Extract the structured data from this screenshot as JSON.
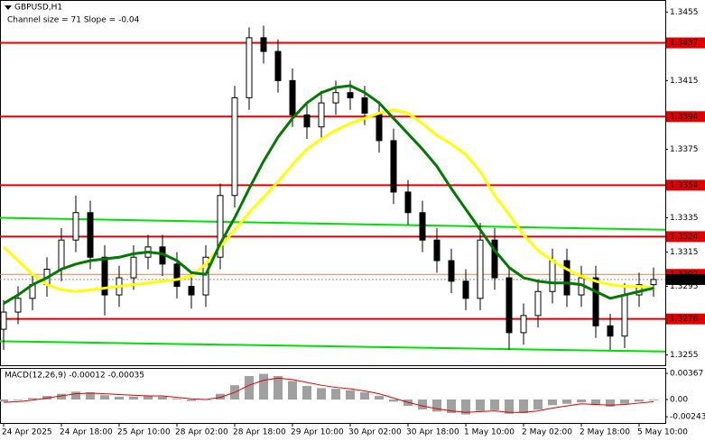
{
  "chart_data": [
    {
      "type": "candlestick",
      "title": "GBPUSD,H1",
      "subtitle": "Channel size = 71 Slope = -0.04",
      "categories": [
        "24 Apr 2025",
        null,
        null,
        null,
        "24 Apr 18:00",
        null,
        null,
        null,
        "25 Apr 10:00",
        null,
        null,
        null,
        "28 Apr 02:00",
        null,
        null,
        null,
        "28 Apr 18:00",
        null,
        null,
        null,
        "29 Apr 10:00",
        null,
        null,
        null,
        "30 Apr 02:00",
        null,
        null,
        null,
        "30 Apr 18:00",
        null,
        null,
        null,
        "1 May 10:00",
        null,
        null,
        null,
        "2 May 02:00",
        null,
        null,
        null,
        "2 May 18:00",
        null,
        null,
        null,
        "5 May 10:00",
        null
      ],
      "open": [
        1.327,
        1.328,
        1.3288,
        1.3296,
        1.3305,
        1.3322,
        1.3338,
        1.3312,
        1.329,
        1.33,
        1.3312,
        1.3318,
        1.3308,
        1.3295,
        1.329,
        1.3312,
        1.3348,
        1.3405,
        1.344,
        1.3432,
        1.3415,
        1.3395,
        1.3388,
        1.3402,
        1.3408,
        1.3405,
        1.3396,
        1.338,
        1.335,
        1.3338,
        1.3322,
        1.331,
        1.3298,
        1.3288,
        1.3322,
        1.33,
        1.3268,
        1.3278,
        1.3292,
        1.331,
        1.329,
        1.33,
        1.3272,
        1.3266,
        1.329,
        1.3296
      ],
      "high": [
        1.3287,
        1.3295,
        1.3303,
        1.3312,
        1.3329,
        1.3348,
        1.3345,
        1.3319,
        1.3307,
        1.3319,
        1.3325,
        1.3325,
        1.3315,
        1.3302,
        1.3319,
        1.3355,
        1.3412,
        1.3446,
        1.3447,
        1.3439,
        1.3422,
        1.3402,
        1.3409,
        1.3415,
        1.3415,
        1.3412,
        1.3403,
        1.3387,
        1.3357,
        1.3345,
        1.3329,
        1.3317,
        1.3305,
        1.3332,
        1.3329,
        1.3307,
        1.3285,
        1.3299,
        1.3317,
        1.3317,
        1.3307,
        1.3307,
        1.3279,
        1.3297,
        1.3303,
        1.3306
      ],
      "low": [
        1.3258,
        1.3273,
        1.3281,
        1.3289,
        1.3298,
        1.3315,
        1.3305,
        1.3278,
        1.3283,
        1.3293,
        1.3305,
        1.3301,
        1.3288,
        1.3282,
        1.3283,
        1.3305,
        1.3341,
        1.3398,
        1.3425,
        1.3408,
        1.3388,
        1.3381,
        1.3381,
        1.3395,
        1.3398,
        1.3389,
        1.3373,
        1.3343,
        1.3331,
        1.3315,
        1.3303,
        1.3291,
        1.3281,
        1.3281,
        1.3293,
        1.3258,
        1.3261,
        1.3271,
        1.3285,
        1.3283,
        1.3283,
        1.3265,
        1.3258,
        1.3259,
        1.3283,
        1.3289
      ],
      "close": [
        1.328,
        1.3288,
        1.3296,
        1.3305,
        1.3322,
        1.3338,
        1.3312,
        1.329,
        1.33,
        1.3312,
        1.3318,
        1.3308,
        1.3295,
        1.329,
        1.3312,
        1.3348,
        1.3405,
        1.344,
        1.3432,
        1.3415,
        1.3395,
        1.3388,
        1.3402,
        1.3408,
        1.3405,
        1.3396,
        1.338,
        1.335,
        1.3338,
        1.3322,
        1.331,
        1.3298,
        1.3288,
        1.3322,
        1.33,
        1.3268,
        1.3278,
        1.3292,
        1.331,
        1.329,
        1.33,
        1.3272,
        1.3266,
        1.329,
        1.3296,
        1.3299
      ],
      "moving_averages": [
        {
          "color": "#ffff00",
          "values": [
            1.3318,
            1.331,
            1.3302,
            1.3296,
            1.3293,
            1.3292,
            1.3293,
            1.3294,
            1.3295,
            1.3296,
            1.3297,
            1.3298,
            1.3299,
            1.3301,
            1.3308,
            1.3318,
            1.3328,
            1.3338,
            1.3347,
            1.3356,
            1.3366,
            1.3375,
            1.3381,
            1.3386,
            1.339,
            1.3393,
            1.3396,
            1.3398,
            1.3396,
            1.339,
            1.3383,
            1.3378,
            1.3372,
            1.3362,
            1.3348,
            1.3337,
            1.3325,
            1.3316,
            1.331,
            1.3305,
            1.3301,
            1.3298,
            1.3296,
            1.3295,
            1.3295,
            1.3294
          ]
        },
        {
          "color": "#007a00",
          "values": [
            1.3285,
            1.329,
            1.3296,
            1.33,
            1.3305,
            1.3308,
            1.331,
            1.3311,
            1.3312,
            1.3314,
            1.3315,
            1.3314,
            1.331,
            1.3303,
            1.3302,
            1.332,
            1.3335,
            1.3352,
            1.3368,
            1.3382,
            1.3393,
            1.3402,
            1.3408,
            1.3411,
            1.3412,
            1.3408,
            1.3402,
            1.3393,
            1.3384,
            1.3375,
            1.3365,
            1.3352,
            1.334,
            1.3328,
            1.3316,
            1.3306,
            1.33,
            1.3298,
            1.3297,
            1.3297,
            1.3296,
            1.3292,
            1.3288,
            1.329,
            1.3292,
            1.3294
          ]
        }
      ],
      "channel": {
        "color": "#00e000",
        "upper": [
          1.3335,
          1.3328
        ],
        "lower": [
          1.3263,
          1.3257
        ]
      },
      "levels": {
        "color": "#e00000",
        "values": [
          1.3437,
          1.3394,
          1.3354,
          1.3324,
          1.3276
        ]
      },
      "price_lines": [
        {
          "value": 1.3302,
          "color": "#e00000"
        },
        {
          "value": 1.3299,
          "color": "#000000"
        }
      ],
      "ylim": [
        1.3249,
        1.3462
      ],
      "yticks": [
        1.3455,
        1.3415,
        1.3375,
        1.3335,
        1.3315,
        1.3295,
        1.3255
      ]
    },
    {
      "type": "macd",
      "title": "MACD(12,26,9) -0.00012 -0.00035",
      "histogram": {
        "color": "#a0a0a0",
        "values": [
          -0.0003,
          -0.0001,
          0.0002,
          0.0005,
          0.0008,
          0.0011,
          0.001,
          0.0006,
          0.0004,
          0.0004,
          0.0005,
          0.0004,
          0.0001,
          -0.0002,
          0.0,
          0.0008,
          0.002,
          0.0033,
          0.0036,
          0.0033,
          0.0026,
          0.0019,
          0.0016,
          0.0015,
          0.0013,
          0.001,
          0.0005,
          -0.0003,
          -0.0009,
          -0.0014,
          -0.0017,
          -0.0019,
          -0.0021,
          -0.0016,
          -0.0015,
          -0.002,
          -0.0019,
          -0.0014,
          -0.0008,
          -0.0006,
          -0.0004,
          -0.0008,
          -0.001,
          -0.0006,
          -0.0003,
          -0.0001
        ]
      },
      "signal": {
        "color": "#e00000",
        "values": [
          -0.0004,
          -0.0003,
          -0.0001,
          0.0002,
          0.0005,
          0.0008,
          0.0009,
          0.0008,
          0.0007,
          0.0006,
          0.0005,
          0.0005,
          0.0003,
          0.0001,
          0.0,
          0.0003,
          0.001,
          0.002,
          0.0027,
          0.003,
          0.0028,
          0.0024,
          0.002,
          0.0017,
          0.0015,
          0.0012,
          0.0008,
          0.0002,
          -0.0004,
          -0.0009,
          -0.0013,
          -0.0016,
          -0.0018,
          -0.0017,
          -0.0016,
          -0.0018,
          -0.0018,
          -0.0016,
          -0.0012,
          -0.0009,
          -0.0006,
          -0.0007,
          -0.0008,
          -0.0007,
          -0.0005,
          -0.0003
        ]
      },
      "ylim": [
        -0.00342,
        0.00443
      ],
      "yticks": [
        0.00367,
        {
          "value": 0,
          "label": "0.00"
        },
        -0.00243
      ]
    }
  ]
}
